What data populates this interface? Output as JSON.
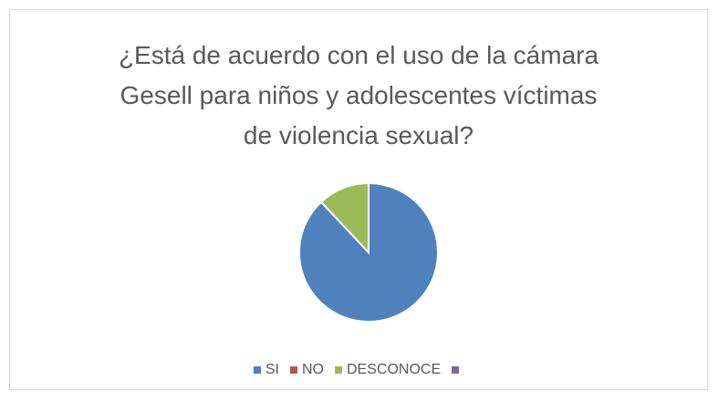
{
  "chart_data": {
    "type": "pie",
    "title": "¿Está de acuerdo con el uso de la cámara Gesell para niños y adolescentes víctimas de violencia sexual?",
    "categories": [
      "SI",
      "NO",
      "DESCONOCE",
      null
    ],
    "values": [
      88,
      0,
      12,
      0
    ],
    "colors": [
      "#4f81bd",
      "#c0504d",
      "#9bbb59",
      "#8064a2"
    ],
    "legend": "bottom"
  }
}
